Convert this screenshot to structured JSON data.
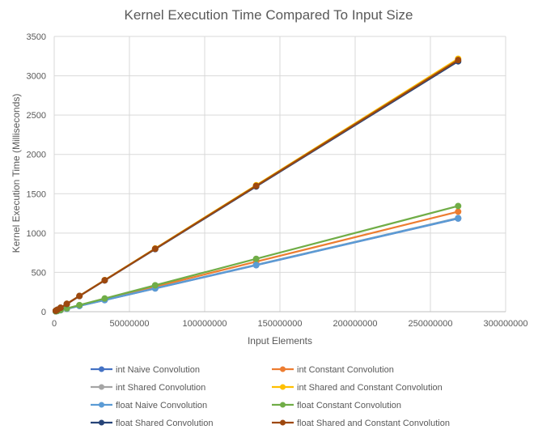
{
  "chart_data": {
    "type": "scatter",
    "title": "Kernel Execution Time Compared To Input Size",
    "xlabel": "Input Elements",
    "ylabel": "Kernel Execution Time (Milliseconds)",
    "xlim": [
      0,
      300000000
    ],
    "ylim": [
      0,
      3500
    ],
    "x_ticks": [
      "0",
      "50000000",
      "100000000",
      "150000000",
      "200000000",
      "250000000",
      "300000000"
    ],
    "y_ticks": [
      "0",
      "500",
      "1000",
      "1500",
      "2000",
      "2500",
      "3000",
      "3500"
    ],
    "grid": true,
    "legend_position": "bottom",
    "x": [
      1048576,
      2097152,
      4194304,
      8388608,
      16777216,
      33554432,
      67108864,
      134217728,
      268435456
    ],
    "series": [
      {
        "name": "int Naive Convolution",
        "color": "#4472C4",
        "values": [
          5,
          10,
          19,
          37,
          74,
          148,
          296,
          592,
          1185
        ]
      },
      {
        "name": "int Constant Convolution",
        "color": "#ED7D31",
        "values": [
          5,
          10,
          20,
          40,
          80,
          159,
          318,
          636,
          1272
        ]
      },
      {
        "name": "int Shared Convolution",
        "color": "#A5A5A5",
        "values": [
          5,
          10,
          19,
          37,
          74,
          149,
          298,
          596,
          1192
        ]
      },
      {
        "name": "int Shared and Constant Convolution",
        "color": "#FFC000",
        "values": [
          13,
          25,
          50,
          101,
          201,
          402,
          804,
          1608,
          3216
        ]
      },
      {
        "name": "float Naive Convolution",
        "color": "#5B9BD5",
        "values": [
          5,
          9,
          19,
          37,
          74,
          148,
          297,
          594,
          1188
        ]
      },
      {
        "name": "float Constant Convolution",
        "color": "#70AD47",
        "values": [
          5,
          10,
          21,
          42,
          84,
          168,
          336,
          672,
          1344
        ]
      },
      {
        "name": "float Shared Convolution",
        "color": "#264478",
        "values": [
          12,
          25,
          50,
          99,
          199,
          398,
          796,
          1592,
          3184
        ]
      },
      {
        "name": "float Shared and Constant Convolution",
        "color": "#9E480E",
        "values": [
          12,
          25,
          50,
          100,
          200,
          400,
          800,
          1600,
          3200
        ]
      }
    ]
  }
}
